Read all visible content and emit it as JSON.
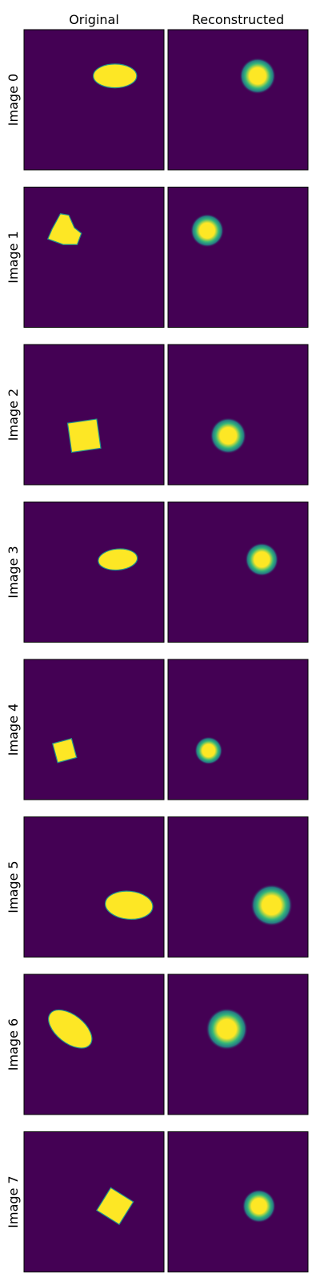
{
  "columns": {
    "original": "Original",
    "reconstructed": "Reconstructed"
  },
  "rows": [
    "Image 0",
    "Image 1",
    "Image 2",
    "Image 3",
    "Image 4",
    "Image 5",
    "Image 6",
    "Image 7"
  ],
  "colors": {
    "background": "#440154",
    "shape": "#fde725",
    "shape_edge": "#21918c",
    "blob_mid": "#35b779",
    "blob_outer": "#21918c"
  },
  "chart_data": {
    "type": "heatmap",
    "colormap": "viridis",
    "axes_ticks": false,
    "grid": false,
    "panel_extent": [
      0,
      1
    ],
    "panels": [
      {
        "row": "Image 0",
        "original": {
          "shape": "ellipse",
          "cx": 0.65,
          "cy": 0.33,
          "rx": 0.155,
          "ry": 0.085,
          "rotation": 0
        },
        "reconstructed": {
          "cx": 0.64,
          "cy": 0.33,
          "r": 0.13
        }
      },
      {
        "row": "Image 1",
        "original": {
          "shape": "polygon",
          "points": [
            [
              0.26,
              0.19
            ],
            [
              0.32,
              0.2
            ],
            [
              0.36,
              0.29
            ],
            [
              0.41,
              0.33
            ],
            [
              0.38,
              0.41
            ],
            [
              0.28,
              0.41
            ],
            [
              0.17,
              0.37
            ],
            [
              0.2,
              0.3
            ]
          ]
        },
        "reconstructed": {
          "cx": 0.28,
          "cy": 0.31,
          "r": 0.12
        }
      },
      {
        "row": "Image 2",
        "original": {
          "shape": "square",
          "cx": 0.43,
          "cy": 0.65,
          "size": 0.21,
          "rotation": -8
        },
        "reconstructed": {
          "cx": 0.43,
          "cy": 0.65,
          "r": 0.13
        }
      },
      {
        "row": "Image 3",
        "original": {
          "shape": "ellipse",
          "cx": 0.67,
          "cy": 0.41,
          "rx": 0.14,
          "ry": 0.075,
          "rotation": -5
        },
        "reconstructed": {
          "cx": 0.67,
          "cy": 0.41,
          "r": 0.12
        }
      },
      {
        "row": "Image 4",
        "original": {
          "shape": "square",
          "cx": 0.29,
          "cy": 0.65,
          "size": 0.14,
          "rotation": -15
        },
        "reconstructed": {
          "cx": 0.29,
          "cy": 0.65,
          "r": 0.1
        }
      },
      {
        "row": "Image 5",
        "original": {
          "shape": "ellipse",
          "cx": 0.75,
          "cy": 0.63,
          "rx": 0.17,
          "ry": 0.1,
          "rotation": 5
        },
        "reconstructed": {
          "cx": 0.74,
          "cy": 0.63,
          "r": 0.15
        }
      },
      {
        "row": "Image 6",
        "original": {
          "shape": "ellipse",
          "cx": 0.33,
          "cy": 0.39,
          "rx": 0.18,
          "ry": 0.1,
          "rotation": 38
        },
        "reconstructed": {
          "cx": 0.42,
          "cy": 0.39,
          "r": 0.15
        }
      },
      {
        "row": "Image 7",
        "original": {
          "shape": "square",
          "cx": 0.65,
          "cy": 0.53,
          "size": 0.19,
          "rotation": 32
        },
        "reconstructed": {
          "cx": 0.65,
          "cy": 0.53,
          "r": 0.12
        }
      }
    ]
  }
}
